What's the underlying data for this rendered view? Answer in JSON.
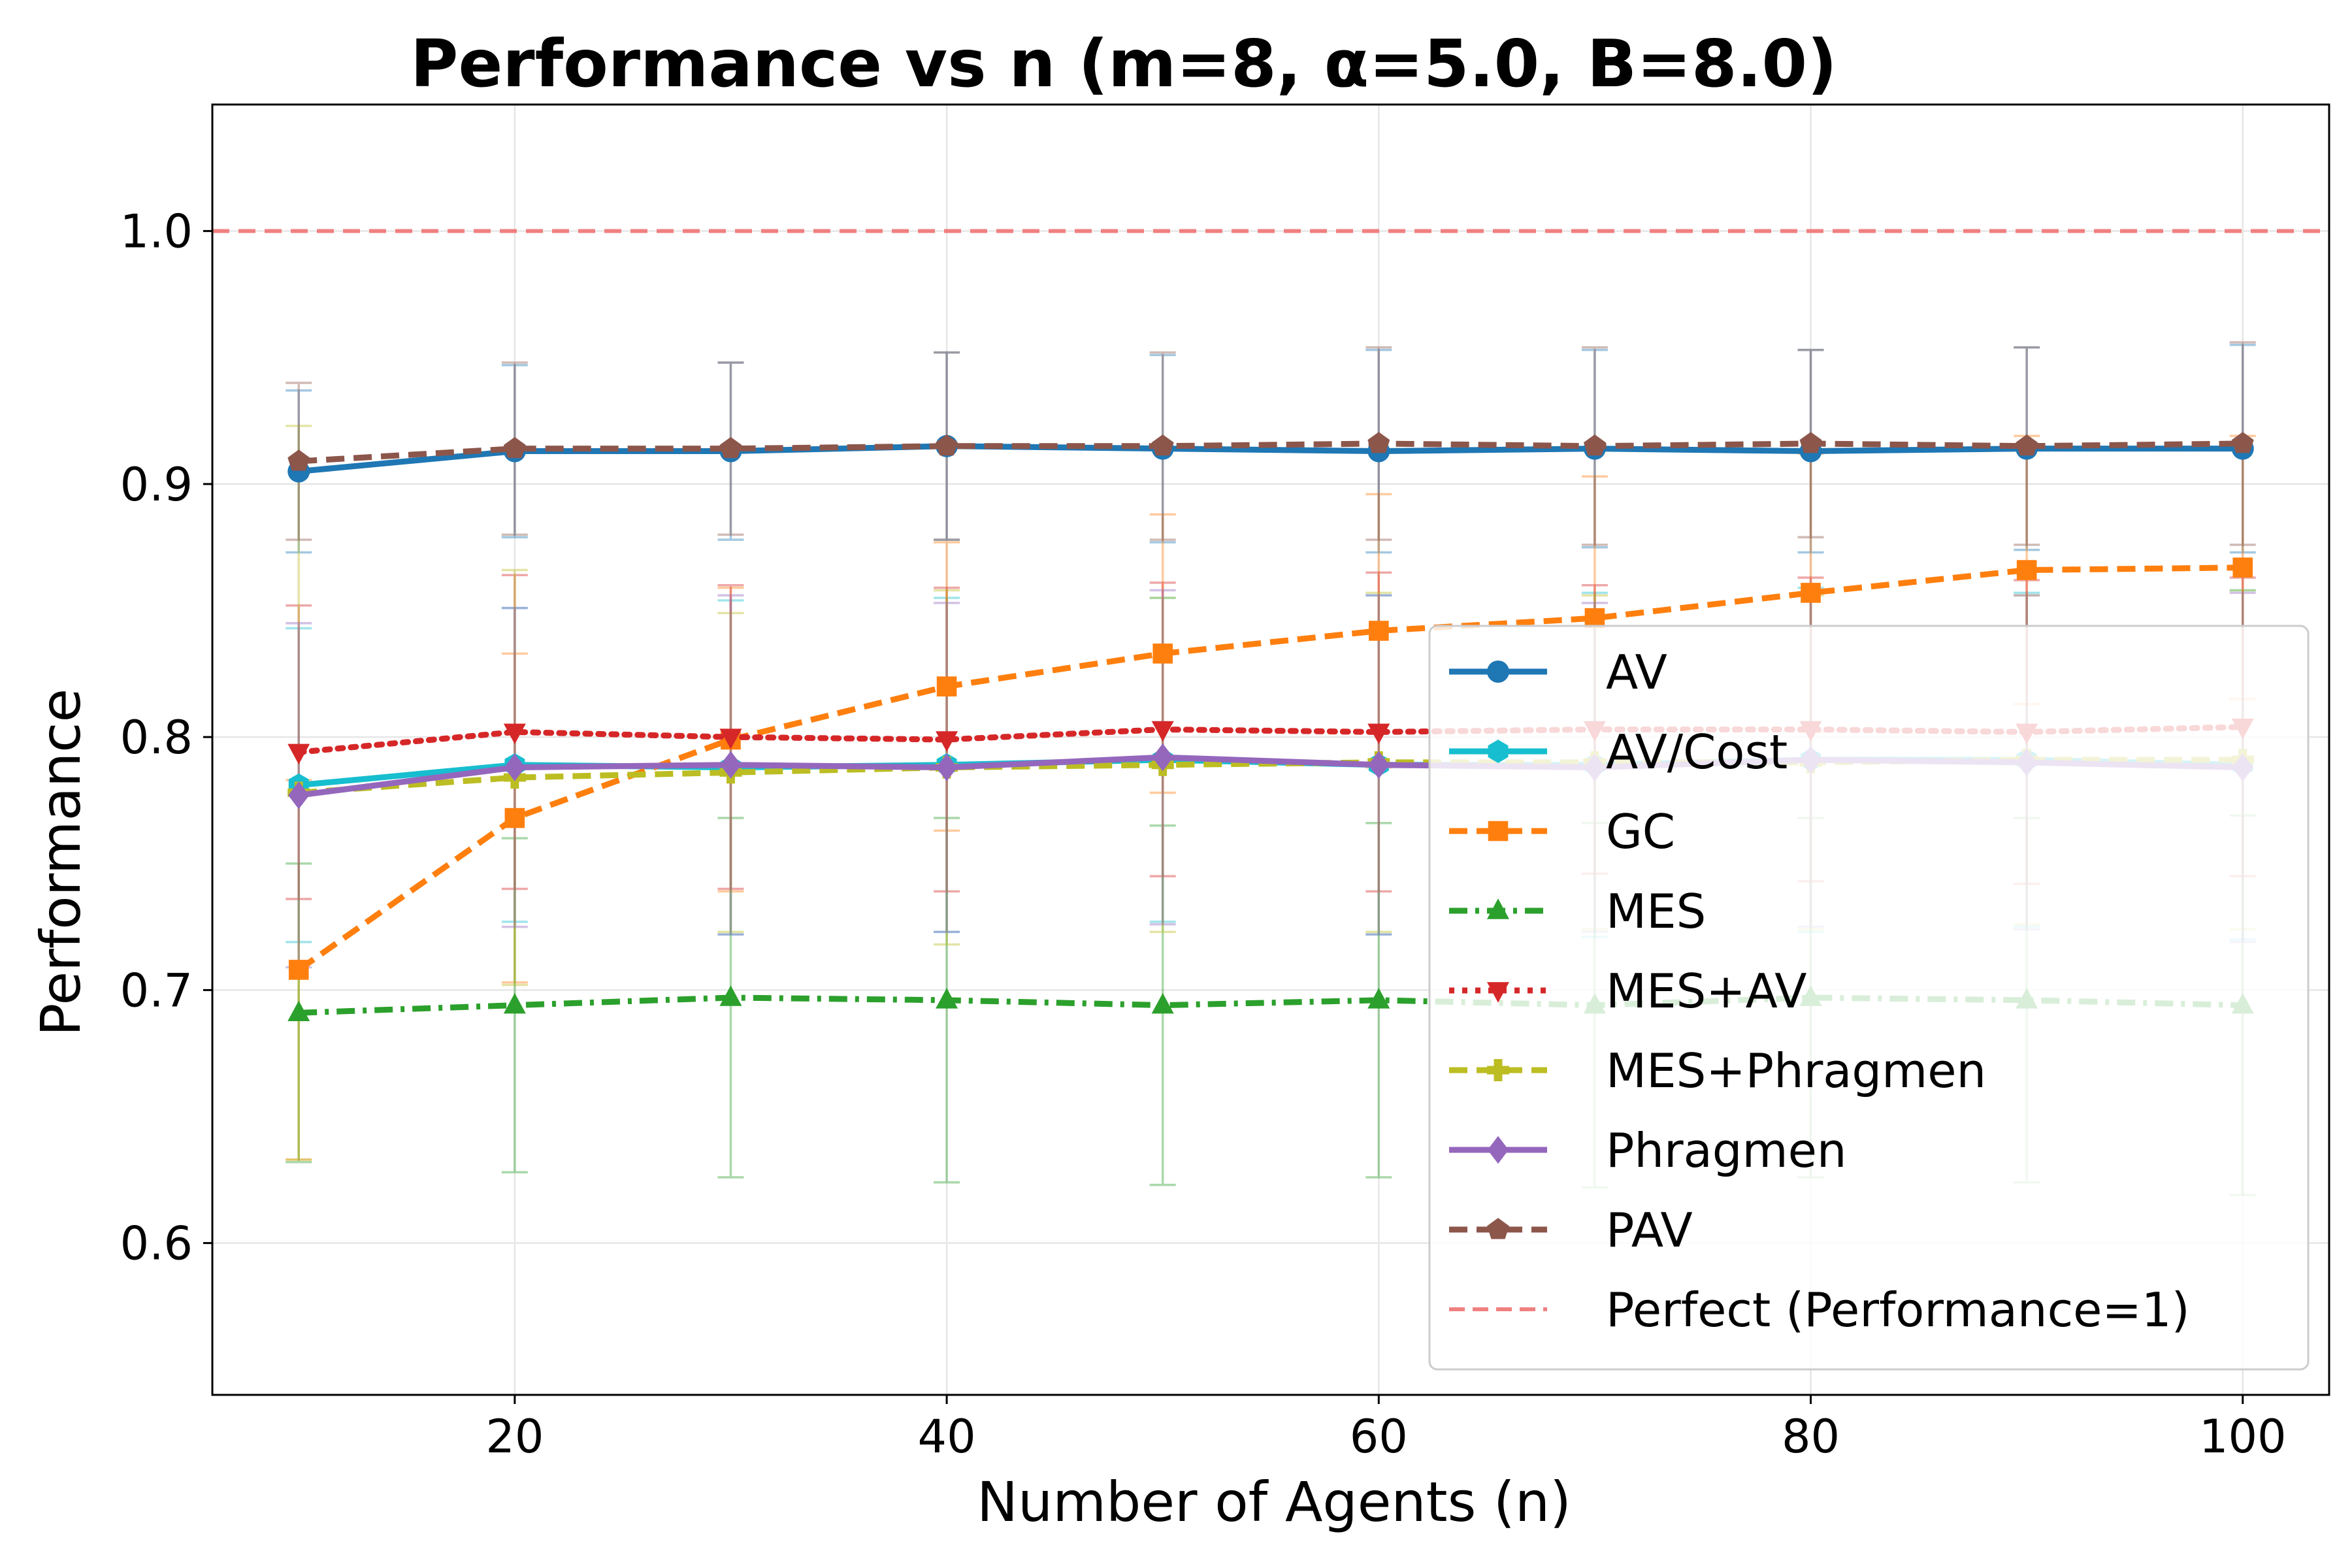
{
  "chart_data": {
    "type": "line",
    "title": "Performance vs n (m=8, α=5.0, B=8.0)",
    "xlabel": "Number of Agents (n)",
    "ylabel": "Performance",
    "xlim": [
      6,
      104
    ],
    "ylim": [
      0.54,
      1.05
    ],
    "xticks": [
      20,
      40,
      60,
      80,
      100
    ],
    "xtick_labels": [
      "20",
      "40",
      "60",
      "80",
      "100"
    ],
    "yticks": [
      0.6,
      0.7,
      0.8,
      0.9,
      1.0
    ],
    "ytick_labels": [
      "0.6",
      "0.7",
      "0.8",
      "0.9",
      "1.0"
    ],
    "grid": true,
    "legend_position": "bottom-right",
    "x": [
      10,
      20,
      30,
      40,
      50,
      60,
      70,
      80,
      90,
      100
    ],
    "series": [
      {
        "name": "AV",
        "color": "#1f77b4",
        "marker": "circle",
        "dash": "solid",
        "values": [
          0.905,
          0.913,
          0.913,
          0.915,
          0.914,
          0.913,
          0.914,
          0.913,
          0.914,
          0.914
        ],
        "err": [
          0.032,
          0.034,
          0.035,
          0.037,
          0.037,
          0.04,
          0.039,
          0.04,
          0.04,
          0.041
        ]
      },
      {
        "name": "AV/Cost",
        "color": "#17becf",
        "marker": "hexagon",
        "dash": "solid",
        "values": [
          0.781,
          0.789,
          0.788,
          0.789,
          0.791,
          0.789,
          0.789,
          0.791,
          0.791,
          0.789
        ],
        "err": [
          0.062,
          0.062,
          0.066,
          0.066,
          0.064,
          0.067,
          0.068,
          0.068,
          0.066,
          0.069
        ]
      },
      {
        "name": "GC",
        "color": "#ff7f0e",
        "marker": "square",
        "dash": "dashed",
        "values": [
          0.708,
          0.768,
          0.799,
          0.82,
          0.833,
          0.842,
          0.847,
          0.857,
          0.866,
          0.867
        ],
        "err": [
          0.075,
          0.065,
          0.06,
          0.057,
          0.055,
          0.054,
          0.056,
          0.055,
          0.053,
          0.052
        ]
      },
      {
        "name": "MES",
        "color": "#2ca02c",
        "marker": "triangle-up",
        "dash": "dashdot",
        "values": [
          0.691,
          0.694,
          0.697,
          0.696,
          0.694,
          0.696,
          0.694,
          0.697,
          0.696,
          0.694
        ],
        "err": [
          0.059,
          0.066,
          0.071,
          0.072,
          0.071,
          0.07,
          0.072,
          0.071,
          0.072,
          0.075
        ]
      },
      {
        "name": "MES+AV",
        "color": "#d62728",
        "marker": "triangle-down",
        "dash": "dotted",
        "values": [
          0.794,
          0.802,
          0.8,
          0.799,
          0.803,
          0.802,
          0.803,
          0.803,
          0.802,
          0.804
        ],
        "err": [
          0.058,
          0.062,
          0.06,
          0.06,
          0.058,
          0.063,
          0.057,
          0.06,
          0.06,
          0.059
        ]
      },
      {
        "name": "MES+Phragmen",
        "color": "#bcbd22",
        "marker": "plus",
        "dash": "dashed",
        "values": [
          0.778,
          0.784,
          0.786,
          0.788,
          0.789,
          0.79,
          0.79,
          0.79,
          0.791,
          0.791
        ],
        "err": [
          0.145,
          0.082,
          0.063,
          0.07,
          0.066,
          0.067,
          0.066,
          0.066,
          0.065,
          0.067
        ]
      },
      {
        "name": "Phragmen",
        "color": "#9467bd",
        "marker": "diamond",
        "dash": "solid",
        "values": [
          0.777,
          0.788,
          0.789,
          0.788,
          0.792,
          0.789,
          0.788,
          0.791,
          0.79,
          0.788
        ],
        "err": [
          0.068,
          0.063,
          0.067,
          0.065,
          0.066,
          0.067,
          0.065,
          0.066,
          0.066,
          0.069
        ]
      },
      {
        "name": "PAV",
        "color": "#8c564b",
        "marker": "pentagon",
        "dash": "dashed",
        "values": [
          0.909,
          0.914,
          0.914,
          0.915,
          0.915,
          0.916,
          0.915,
          0.916,
          0.915,
          0.916
        ],
        "err": [
          0.031,
          0.034,
          0.034,
          0.037,
          0.037,
          0.038,
          0.039,
          0.037,
          0.039,
          0.04
        ]
      }
    ],
    "reference_line": {
      "name": "Perfect (Performance=1)",
      "y": 1.0,
      "color": "#f08080"
    }
  }
}
